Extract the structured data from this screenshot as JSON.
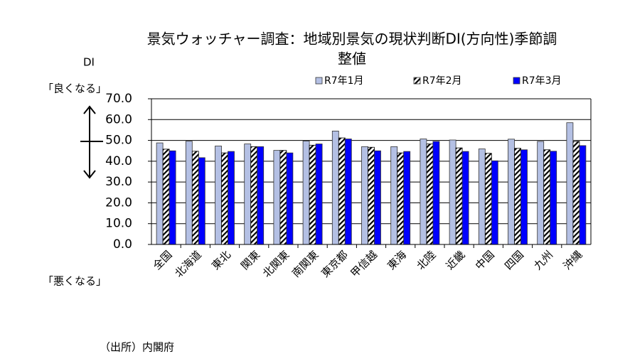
{
  "chart_data": {
    "type": "bar",
    "title_lines": [
      "景気ウォッチャー調査：地域別景気の現状判断DI(方向性)季節調",
      "整値"
    ],
    "y_label": "DI",
    "upper_note": "「良くなる」",
    "lower_note": "「悪くなる」",
    "source": "（出所）内閣府",
    "categories": [
      "全国",
      "北海道",
      "東北",
      "関東",
      "北関東",
      "南関東",
      "東京都",
      "甲信越",
      "東海",
      "北陸",
      "近畿",
      "中国",
      "四国",
      "九州",
      "沖縄"
    ],
    "series": [
      {
        "name": "R7年1月",
        "color": "#b4c0e4",
        "pattern": "solid",
        "values": [
          48.8,
          49.6,
          47.3,
          48.3,
          45.2,
          49.7,
          54.5,
          47.0,
          47.0,
          50.7,
          50.2,
          45.9,
          50.6,
          49.5,
          58.5
        ]
      },
      {
        "name": "R7年2月",
        "color": "#000000",
        "pattern": "diagonal-hatch",
        "values": [
          45.8,
          44.8,
          44.0,
          47.0,
          45.2,
          47.7,
          51.2,
          46.7,
          44.0,
          48.3,
          46.4,
          43.8,
          46.2,
          45.5,
          49.5
        ]
      },
      {
        "name": "R7年3月",
        "color": "#0000ff",
        "pattern": "solid",
        "values": [
          45.0,
          41.7,
          44.7,
          47.0,
          44.0,
          48.3,
          50.7,
          45.0,
          44.7,
          49.5,
          44.7,
          40.2,
          45.5,
          44.8,
          47.5
        ]
      }
    ],
    "ylim": [
      0,
      70
    ],
    "yticks": [
      {
        "value": 0,
        "label": "0.0"
      },
      {
        "value": 10,
        "label": "10.0"
      },
      {
        "value": 20,
        "label": "20.0"
      },
      {
        "value": 30,
        "label": "30.0"
      },
      {
        "value": 40,
        "label": "40.0"
      },
      {
        "value": 50,
        "label": "50.0"
      },
      {
        "value": 60,
        "label": "60.0"
      },
      {
        "value": 70,
        "label": "70.0"
      }
    ],
    "grid": true
  }
}
